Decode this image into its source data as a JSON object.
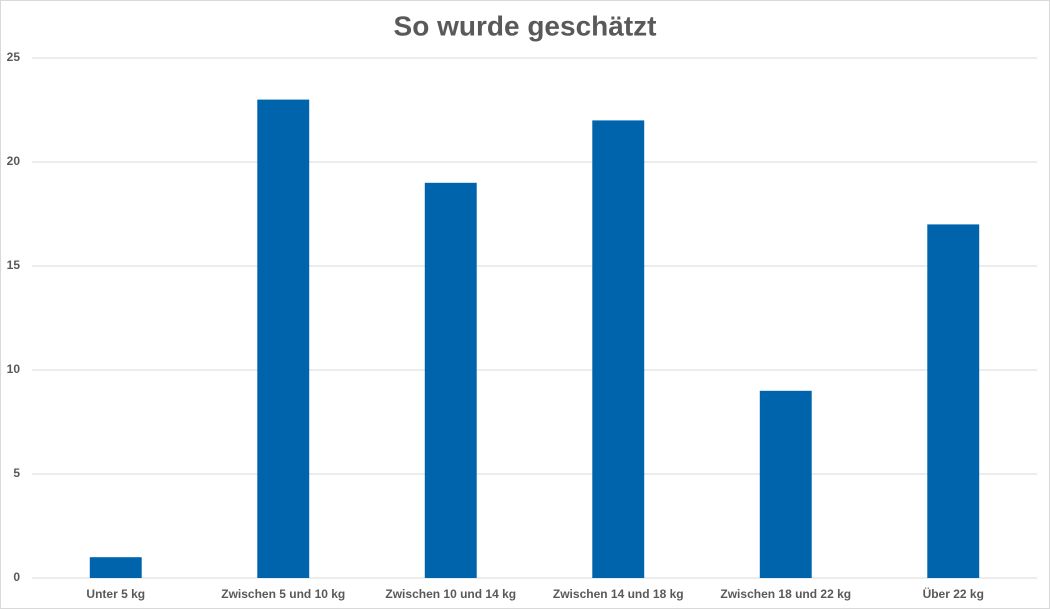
{
  "chart_data": {
    "type": "bar",
    "title": "So wurde geschätzt",
    "categories": [
      "Unter 5 kg",
      "Zwischen 5 und 10 kg",
      "Zwischen 10 und 14 kg",
      "Zwischen 14 und 18 kg",
      "Zwischen 18 und 22 kg",
      "Über 22 kg"
    ],
    "values": [
      1,
      23,
      19,
      22,
      9,
      17
    ],
    "color": "#0064ad",
    "ylim": [
      0,
      25
    ],
    "yticks": [
      0,
      5,
      10,
      15,
      20,
      25
    ],
    "grid": true
  }
}
